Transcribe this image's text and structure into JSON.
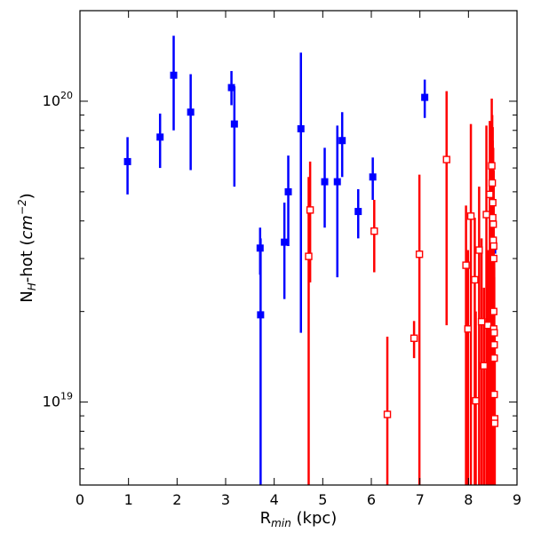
{
  "chart_data": {
    "type": "scatter",
    "xlabel": "R<sub>min</sub> (kpc)",
    "ylabel": "N<sub>H</sub>-hot (cm<sup>-2</sup>)",
    "xlabel_parts": {
      "main": "R",
      "sub": "min",
      "rest": " (kpc)"
    },
    "ylabel_parts": {
      "main": "N",
      "sub": "H",
      "mid": "-hot (",
      "unit": "cm",
      "sup": "−2",
      "rest": ")"
    },
    "xlim": [
      0,
      9
    ],
    "ylim": [
      5.3e+18,
      2e+20
    ],
    "yscale": "log",
    "x_ticks": [
      0,
      1,
      2,
      3,
      4,
      5,
      6,
      7,
      8,
      9
    ],
    "x_tick_labels": [
      "0",
      "1",
      "2",
      "3",
      "4",
      "5",
      "6",
      "7",
      "8",
      "9"
    ],
    "y_ticks": [
      1e+19,
      1e+20
    ],
    "y_tick_labels": [
      {
        "base": "10",
        "exp": "19"
      },
      {
        "base": "10",
        "exp": "20"
      }
    ],
    "grid": false,
    "series": [
      {
        "color": "#0000ff",
        "marker": "filled-square",
        "points": [
          {
            "x": 0.98,
            "y": 6.3e+19,
            "ylo": 4.9e+19,
            "yhi": 7.6e+19
          },
          {
            "x": 1.65,
            "y": 7.6e+19,
            "ylo": 6e+19,
            "yhi": 9.1e+19
          },
          {
            "x": 1.93,
            "y": 1.22e+20,
            "ylo": 8e+19,
            "yhi": 1.65e+20
          },
          {
            "x": 2.28,
            "y": 9.2e+19,
            "ylo": 5.9e+19,
            "yhi": 1.23e+20
          },
          {
            "x": 3.12,
            "y": 1.11e+20,
            "ylo": 9.7e+19,
            "yhi": 1.26e+20
          },
          {
            "x": 3.18,
            "y": 8.4e+19,
            "ylo": 5.2e+19,
            "yhi": 1.12e+20
          },
          {
            "x": 3.71,
            "y": 3.25e+19,
            "ylo": 2.65e+19,
            "yhi": 3.8e+19
          },
          {
            "x": 3.72,
            "y": 1.95e+19,
            "ylo": 4e+18,
            "yhi": 3.5e+19
          },
          {
            "x": 4.21,
            "y": 3.4e+19,
            "ylo": 2.2e+19,
            "yhi": 4.6e+19
          },
          {
            "x": 4.29,
            "y": 5e+19,
            "ylo": 3.3e+19,
            "yhi": 6.6e+19
          },
          {
            "x": 4.55,
            "y": 8.1e+19,
            "ylo": 1.7e+19,
            "yhi": 1.45e+20
          },
          {
            "x": 5.04,
            "y": 5.4e+19,
            "ylo": 3.8e+19,
            "yhi": 7e+19
          },
          {
            "x": 5.3,
            "y": 5.4e+19,
            "ylo": 2.6e+19,
            "yhi": 8.3e+19
          },
          {
            "x": 5.4,
            "y": 7.4e+19,
            "ylo": 5.6e+19,
            "yhi": 9.2e+19
          },
          {
            "x": 5.73,
            "y": 4.3e+19,
            "ylo": 3.5e+19,
            "yhi": 5.1e+19
          },
          {
            "x": 6.03,
            "y": 5.6e+19,
            "ylo": 4.7e+19,
            "yhi": 6.5e+19
          },
          {
            "x": 7.1,
            "y": 1.03e+20,
            "ylo": 8.8e+19,
            "yhi": 1.18e+20
          },
          {
            "x": 8.5,
            "y": 3.2e+19,
            "ylo": 3e+19,
            "yhi": 3.4e+19
          }
        ]
      },
      {
        "color": "#ff0000",
        "marker": "open-square",
        "points": [
          {
            "x": 4.71,
            "y": 3.05e+19,
            "ylo": 1e+18,
            "yhi": 5.6e+19
          },
          {
            "x": 4.74,
            "y": 4.35e+19,
            "ylo": 2.5e+19,
            "yhi": 6.3e+19
          },
          {
            "x": 6.06,
            "y": 3.7e+19,
            "ylo": 2.7e+19,
            "yhi": 4.7e+19
          },
          {
            "x": 6.33,
            "y": 9.1e+18,
            "ylo": 2e+18,
            "yhi": 1.65e+19
          },
          {
            "x": 6.88,
            "y": 1.63e+19,
            "ylo": 1.4e+19,
            "yhi": 1.86e+19
          },
          {
            "x": 6.99,
            "y": 3.1e+19,
            "ylo": 1e+18,
            "yhi": 5.7e+19
          },
          {
            "x": 7.55,
            "y": 6.4e+19,
            "ylo": 1.8e+19,
            "yhi": 1.08e+20
          },
          {
            "x": 7.95,
            "y": 2.85e+19,
            "ylo": 1e+18,
            "yhi": 4.5e+19
          },
          {
            "x": 7.99,
            "y": 1.75e+19,
            "ylo": 1e+18,
            "yhi": 3.2e+19
          },
          {
            "x": 8.05,
            "y": 4.15e+19,
            "ylo": 1e+18,
            "yhi": 8.4e+19
          },
          {
            "x": 8.13,
            "y": 2.55e+19,
            "ylo": 1e+18,
            "yhi": 4.1e+19
          },
          {
            "x": 8.15,
            "y": 1.01e+19,
            "ylo": 1e+18,
            "yhi": 2e+19
          },
          {
            "x": 8.22,
            "y": 3.2e+19,
            "ylo": 1e+18,
            "yhi": 5.2e+19
          },
          {
            "x": 8.27,
            "y": 1.85e+19,
            "ylo": 1e+18,
            "yhi": 3.5e+19
          },
          {
            "x": 8.32,
            "y": 1.32e+19,
            "ylo": 1e+18,
            "yhi": 2.4e+19
          },
          {
            "x": 8.37,
            "y": 4.2e+19,
            "ylo": 1e+18,
            "yhi": 8.3e+19
          },
          {
            "x": 8.4,
            "y": 1.8e+19,
            "ylo": 1e+18,
            "yhi": 3.2e+19
          },
          {
            "x": 8.44,
            "y": 4.9e+19,
            "ylo": 1e+18,
            "yhi": 8.6e+19
          },
          {
            "x": 8.48,
            "y": 6.1e+19,
            "ylo": 1e+18,
            "yhi": 1.02e+20
          },
          {
            "x": 8.49,
            "y": 5.35e+19,
            "ylo": 1e+18,
            "yhi": 9e+19
          },
          {
            "x": 8.5,
            "y": 4.6e+19,
            "ylo": 1e+18,
            "yhi": 8.2e+19
          },
          {
            "x": 8.5,
            "y": 4.1e+19,
            "ylo": 1e+18,
            "yhi": 7.4e+19
          },
          {
            "x": 8.51,
            "y": 3.9e+19,
            "ylo": 1e+18,
            "yhi": 7e+19
          },
          {
            "x": 8.51,
            "y": 3.45e+19,
            "ylo": 1e+18,
            "yhi": 6.1e+19
          },
          {
            "x": 8.52,
            "y": 3.3e+19,
            "ylo": 1e+18,
            "yhi": 5.9e+19
          },
          {
            "x": 8.52,
            "y": 3e+19,
            "ylo": 1e+18,
            "yhi": 5.4e+19
          },
          {
            "x": 8.52,
            "y": 2e+19,
            "ylo": 1e+18,
            "yhi": 3.6e+19
          },
          {
            "x": 8.52,
            "y": 1.75e+19,
            "ylo": 1e+18,
            "yhi": 3.1e+19
          },
          {
            "x": 8.53,
            "y": 1.7e+19,
            "ylo": 1e+18,
            "yhi": 3e+19
          },
          {
            "x": 8.53,
            "y": 1.55e+19,
            "ylo": 1e+18,
            "yhi": 2.8e+19
          },
          {
            "x": 8.53,
            "y": 1.4e+19,
            "ylo": 1e+18,
            "yhi": 2.6e+19
          },
          {
            "x": 8.53,
            "y": 1.06e+19,
            "ylo": 1e+18,
            "yhi": 2e+19
          },
          {
            "x": 8.54,
            "y": 8.8e+18,
            "ylo": 1e+18,
            "yhi": 1.7e+19
          },
          {
            "x": 8.54,
            "y": 8.5e+18,
            "ylo": 1e+18,
            "yhi": 1.6e+19
          }
        ]
      }
    ]
  }
}
